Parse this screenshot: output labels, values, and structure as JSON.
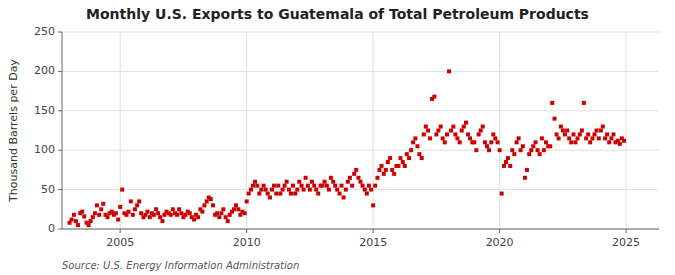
{
  "chart_data": {
    "type": "scatter",
    "title": "Monthly U.S. Exports to Guatemala of Total Petroleum Products",
    "y_label": "Thousand Barrels per Day",
    "source": "Source: U.S. Energy Information Administration",
    "xlim": [
      2002.7,
      2026.3
    ],
    "ylim": [
      0,
      250
    ],
    "xticks": [
      2005,
      2010,
      2015,
      2020,
      2025
    ],
    "yticks": [
      0,
      50,
      100,
      150,
      200,
      250
    ],
    "grid": true,
    "color": "#CC0000",
    "marker": "square",
    "x": [
      2003.0,
      2003.08,
      2003.17,
      2003.25,
      2003.33,
      2003.42,
      2003.5,
      2003.58,
      2003.67,
      2003.75,
      2003.83,
      2003.92,
      2004.0,
      2004.08,
      2004.17,
      2004.25,
      2004.33,
      2004.42,
      2004.5,
      2004.58,
      2004.67,
      2004.75,
      2004.83,
      2004.92,
      2005.0,
      2005.08,
      2005.17,
      2005.25,
      2005.33,
      2005.42,
      2005.5,
      2005.58,
      2005.67,
      2005.75,
      2005.83,
      2005.92,
      2006.0,
      2006.08,
      2006.17,
      2006.25,
      2006.33,
      2006.42,
      2006.5,
      2006.58,
      2006.67,
      2006.75,
      2006.83,
      2006.92,
      2007.0,
      2007.08,
      2007.17,
      2007.25,
      2007.33,
      2007.42,
      2007.5,
      2007.58,
      2007.67,
      2007.75,
      2007.83,
      2007.92,
      2008.0,
      2008.08,
      2008.17,
      2008.25,
      2008.33,
      2008.42,
      2008.5,
      2008.58,
      2008.67,
      2008.75,
      2008.83,
      2008.92,
      2009.0,
      2009.08,
      2009.17,
      2009.25,
      2009.33,
      2009.42,
      2009.5,
      2009.58,
      2009.67,
      2009.75,
      2009.83,
      2009.92,
      2010.0,
      2010.08,
      2010.17,
      2010.25,
      2010.33,
      2010.42,
      2010.5,
      2010.58,
      2010.67,
      2010.75,
      2010.83,
      2010.92,
      2011.0,
      2011.08,
      2011.17,
      2011.25,
      2011.33,
      2011.42,
      2011.5,
      2011.58,
      2011.67,
      2011.75,
      2011.83,
      2011.92,
      2012.0,
      2012.08,
      2012.17,
      2012.25,
      2012.33,
      2012.42,
      2012.5,
      2012.58,
      2012.67,
      2012.75,
      2012.83,
      2012.92,
      2013.0,
      2013.08,
      2013.17,
      2013.25,
      2013.33,
      2013.42,
      2013.5,
      2013.58,
      2013.67,
      2013.75,
      2013.83,
      2013.92,
      2014.0,
      2014.08,
      2014.17,
      2014.25,
      2014.33,
      2014.42,
      2014.5,
      2014.58,
      2014.67,
      2014.75,
      2014.83,
      2014.92,
      2015.0,
      2015.08,
      2015.17,
      2015.25,
      2015.33,
      2015.42,
      2015.5,
      2015.58,
      2015.67,
      2015.75,
      2015.83,
      2015.92,
      2016.0,
      2016.08,
      2016.17,
      2016.25,
      2016.33,
      2016.42,
      2016.5,
      2016.58,
      2016.67,
      2016.75,
      2016.83,
      2016.92,
      2017.0,
      2017.08,
      2017.17,
      2017.25,
      2017.33,
      2017.42,
      2017.5,
      2017.58,
      2017.67,
      2017.75,
      2017.83,
      2017.92,
      2018.0,
      2018.08,
      2018.17,
      2018.25,
      2018.33,
      2018.42,
      2018.5,
      2018.58,
      2018.67,
      2018.75,
      2018.83,
      2018.92,
      2019.0,
      2019.08,
      2019.17,
      2019.25,
      2019.33,
      2019.42,
      2019.5,
      2019.58,
      2019.67,
      2019.75,
      2019.83,
      2019.92,
      2020.0,
      2020.08,
      2020.17,
      2020.25,
      2020.33,
      2020.42,
      2020.5,
      2020.58,
      2020.67,
      2020.75,
      2020.83,
      2020.92,
      2021.0,
      2021.08,
      2021.17,
      2021.25,
      2021.33,
      2021.42,
      2021.5,
      2021.58,
      2021.67,
      2021.75,
      2021.83,
      2021.92,
      2022.0,
      2022.08,
      2022.17,
      2022.25,
      2022.33,
      2022.42,
      2022.5,
      2022.58,
      2022.67,
      2022.75,
      2022.83,
      2022.92,
      2023.0,
      2023.08,
      2023.17,
      2023.25,
      2023.33,
      2023.42,
      2023.5,
      2023.58,
      2023.67,
      2023.75,
      2023.83,
      2023.92,
      2024.0,
      2024.08,
      2024.17,
      2024.25,
      2024.33,
      2024.42,
      2024.5,
      2024.58,
      2024.67,
      2024.75,
      2024.83,
      2024.92
    ],
    "values": [
      8,
      12,
      18,
      10,
      5,
      20,
      22,
      16,
      8,
      5,
      10,
      15,
      20,
      30,
      18,
      25,
      32,
      18,
      15,
      20,
      22,
      18,
      20,
      12,
      28,
      50,
      20,
      18,
      22,
      35,
      18,
      25,
      30,
      35,
      20,
      15,
      18,
      22,
      15,
      20,
      18,
      25,
      20,
      15,
      10,
      18,
      22,
      20,
      18,
      25,
      20,
      18,
      25,
      20,
      15,
      18,
      22,
      20,
      15,
      12,
      18,
      15,
      25,
      22,
      30,
      35,
      40,
      38,
      30,
      18,
      20,
      15,
      20,
      25,
      15,
      10,
      18,
      22,
      25,
      30,
      25,
      18,
      22,
      20,
      35,
      45,
      50,
      55,
      60,
      55,
      45,
      50,
      55,
      50,
      45,
      40,
      50,
      55,
      45,
      55,
      45,
      50,
      55,
      60,
      50,
      45,
      55,
      45,
      50,
      60,
      55,
      50,
      65,
      55,
      50,
      60,
      55,
      50,
      45,
      55,
      55,
      60,
      55,
      50,
      65,
      60,
      55,
      50,
      45,
      55,
      40,
      50,
      60,
      65,
      55,
      70,
      75,
      65,
      60,
      55,
      50,
      45,
      55,
      50,
      30,
      55,
      65,
      75,
      80,
      70,
      75,
      85,
      90,
      75,
      70,
      80,
      80,
      90,
      85,
      80,
      95,
      90,
      100,
      110,
      115,
      105,
      95,
      90,
      120,
      130,
      125,
      115,
      165,
      168,
      120,
      125,
      130,
      115,
      110,
      120,
      200,
      125,
      130,
      120,
      115,
      110,
      125,
      130,
      135,
      120,
      115,
      110,
      110,
      100,
      120,
      125,
      130,
      110,
      105,
      100,
      110,
      120,
      115,
      110,
      100,
      45,
      80,
      85,
      90,
      80,
      100,
      95,
      110,
      115,
      100,
      105,
      65,
      75,
      95,
      100,
      105,
      110,
      100,
      95,
      115,
      100,
      110,
      105,
      105,
      160,
      140,
      120,
      115,
      130,
      125,
      120,
      125,
      115,
      110,
      120,
      110,
      115,
      120,
      125,
      160,
      115,
      120,
      110,
      115,
      120,
      125,
      115,
      125,
      130,
      115,
      120,
      110,
      115,
      120,
      110,
      112,
      108,
      115,
      112
    ]
  }
}
